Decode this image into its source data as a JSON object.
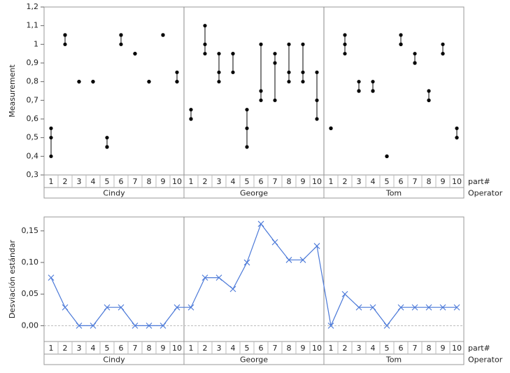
{
  "chart_data": [
    {
      "type": "variability",
      "y_label": "Measurement",
      "x_labels": [
        "part#",
        "Operator"
      ],
      "categories": [
        "1",
        "2",
        "3",
        "4",
        "5",
        "6",
        "7",
        "8",
        "9",
        "10"
      ],
      "color": "#000000",
      "ylim": [
        0.3,
        1.2
      ],
      "yticks": [
        {
          "value": 0.3,
          "label": "0,3"
        },
        {
          "value": 0.4,
          "label": "0,4"
        },
        {
          "value": 0.5,
          "label": "0,5"
        },
        {
          "value": 0.6,
          "label": "0,6"
        },
        {
          "value": 0.7,
          "label": "0,7"
        },
        {
          "value": 0.8,
          "label": "0,8"
        },
        {
          "value": 0.9,
          "label": "0,9"
        },
        1,
        {
          "value": 1.1,
          "label": "1,1"
        },
        {
          "value": 1.2,
          "label": "1,2"
        }
      ],
      "series": [
        {
          "name": "Cindy",
          "values": [
            [
              0.55,
              0.5,
              0.4
            ],
            [
              1.0,
              1.05,
              1.05
            ],
            [
              0.8,
              0.8,
              0.8
            ],
            [
              0.8,
              0.8,
              0.8
            ],
            [
              0.5,
              0.45,
              0.45
            ],
            [
              1.05,
              1.0,
              1.05
            ],
            [
              0.95,
              0.95,
              0.95
            ],
            [
              0.8,
              0.8,
              0.8
            ],
            [
              1.05,
              1.05,
              1.05
            ],
            [
              0.85,
              0.8,
              0.8
            ]
          ]
        },
        {
          "name": "George",
          "values": [
            [
              0.65,
              0.6,
              0.6
            ],
            [
              1.1,
              1.0,
              0.95
            ],
            [
              0.95,
              0.85,
              0.8
            ],
            [
              0.95,
              0.95,
              0.85
            ],
            [
              0.65,
              0.55,
              0.45
            ],
            [
              1.0,
              0.75,
              0.7
            ],
            [
              0.95,
              0.9,
              0.7
            ],
            [
              1.0,
              0.85,
              0.8
            ],
            [
              1.0,
              0.85,
              0.8
            ],
            [
              0.85,
              0.7,
              0.6
            ]
          ]
        },
        {
          "name": "Tom",
          "values": [
            [
              0.55,
              0.55,
              0.55
            ],
            [
              1.05,
              1.0,
              0.95
            ],
            [
              0.8,
              0.75,
              0.75
            ],
            [
              0.8,
              0.75,
              0.75
            ],
            [
              0.4,
              0.4,
              0.4
            ],
            [
              1.05,
              1.0,
              1.0
            ],
            [
              0.95,
              0.9,
              0.9
            ],
            [
              0.75,
              0.7,
              0.7
            ],
            [
              1.0,
              0.95,
              0.95
            ],
            [
              0.55,
              0.5,
              0.5
            ]
          ]
        }
      ]
    },
    {
      "type": "line",
      "y_label": "Desviación estándar",
      "x_labels": [
        "part#",
        "Operator"
      ],
      "categories": [
        "1",
        "2",
        "3",
        "4",
        "5",
        "6",
        "7",
        "8",
        "9",
        "10"
      ],
      "color": "#4a78d8",
      "ylim": [
        -0.025,
        0.172
      ],
      "yticks": [
        {
          "value": 0,
          "label": "0,00"
        },
        {
          "value": 0.05,
          "label": "0,05"
        },
        {
          "value": 0.1,
          "label": "0,10"
        },
        {
          "value": 0.15,
          "label": "0,15"
        }
      ],
      "reference_line": 0,
      "series": [
        {
          "name": "Cindy",
          "values": [
            0.076,
            0.029,
            0,
            0,
            0.029,
            0.029,
            0,
            0,
            0,
            0.029
          ]
        },
        {
          "name": "George",
          "values": [
            0.029,
            0.076,
            0.076,
            0.058,
            0.1,
            0.161,
            0.132,
            0.104,
            0.104,
            0.126
          ]
        },
        {
          "name": "Tom",
          "values": [
            0,
            0.05,
            0.029,
            0.029,
            0,
            0.029,
            0.029,
            0.029,
            0.029,
            0.029
          ]
        }
      ]
    }
  ]
}
